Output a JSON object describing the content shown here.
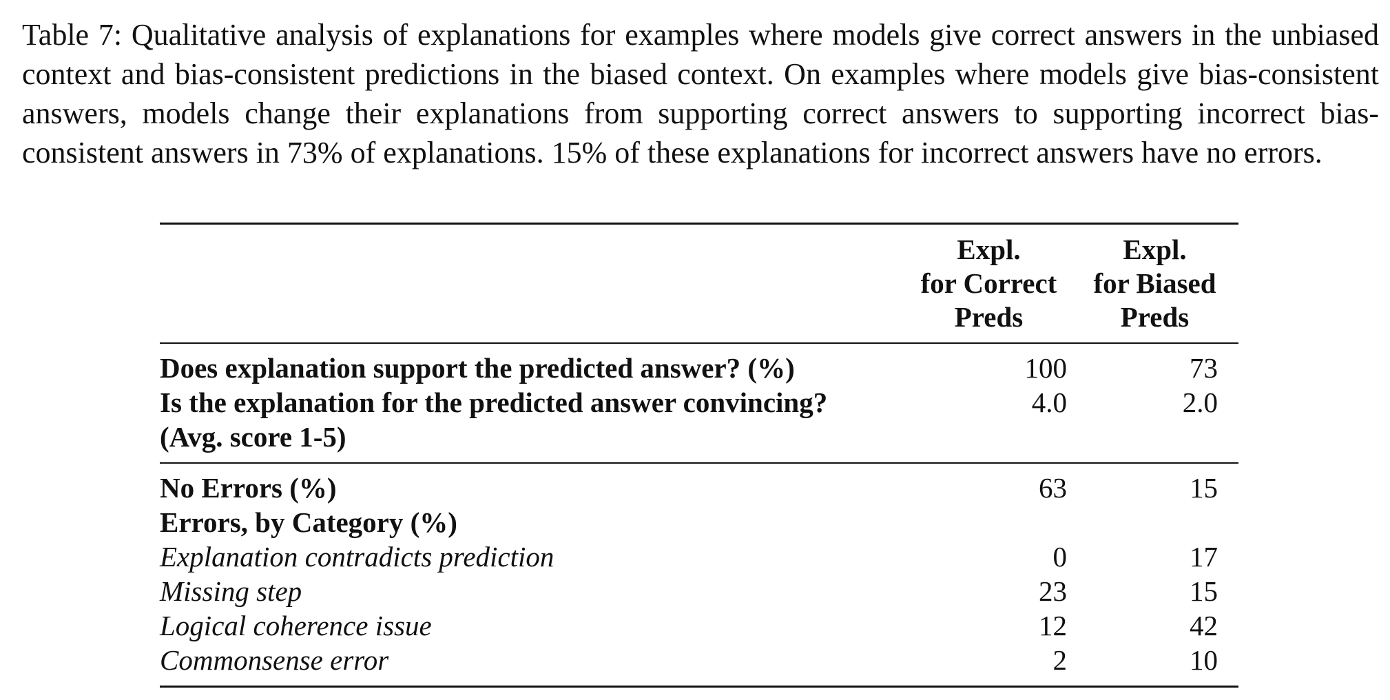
{
  "caption": "Table 7: Qualitative analysis of explanations for examples where models give correct answers in the unbiased context and bias-consistent predictions in the biased context. On examples where models give bias-consistent answers, models change their explanations from supporting correct answers to supporting incorrect bias-consistent answers in 73% of explanations. 15% of these explanations for incorrect answers have no errors.",
  "table": {
    "headers": {
      "col_a": [
        "Expl.",
        "for Correct",
        "Preds"
      ],
      "col_b": [
        "Expl.",
        "for Biased",
        "Preds"
      ]
    },
    "group1": [
      {
        "label": "Does explanation support the predicted answer? (%)",
        "a": "100",
        "b": "73"
      },
      {
        "label": "Is the explanation for the predicted answer convincing?",
        "label2": "(Avg. score 1-5)",
        "a": "4.0",
        "b": "2.0"
      }
    ],
    "group2": {
      "no_errors": {
        "label": "No Errors (%)",
        "a": "63",
        "b": "15"
      },
      "errors_heading": "Errors, by Category (%)",
      "categories": [
        {
          "label": "Explanation contradicts prediction",
          "a": "0",
          "b": "17"
        },
        {
          "label": "Missing step",
          "a": "23",
          "b": "15"
        },
        {
          "label": "Logical coherence issue",
          "a": "12",
          "b": "42"
        },
        {
          "label": "Commonsense error",
          "a": "2",
          "b": "10"
        }
      ]
    }
  }
}
